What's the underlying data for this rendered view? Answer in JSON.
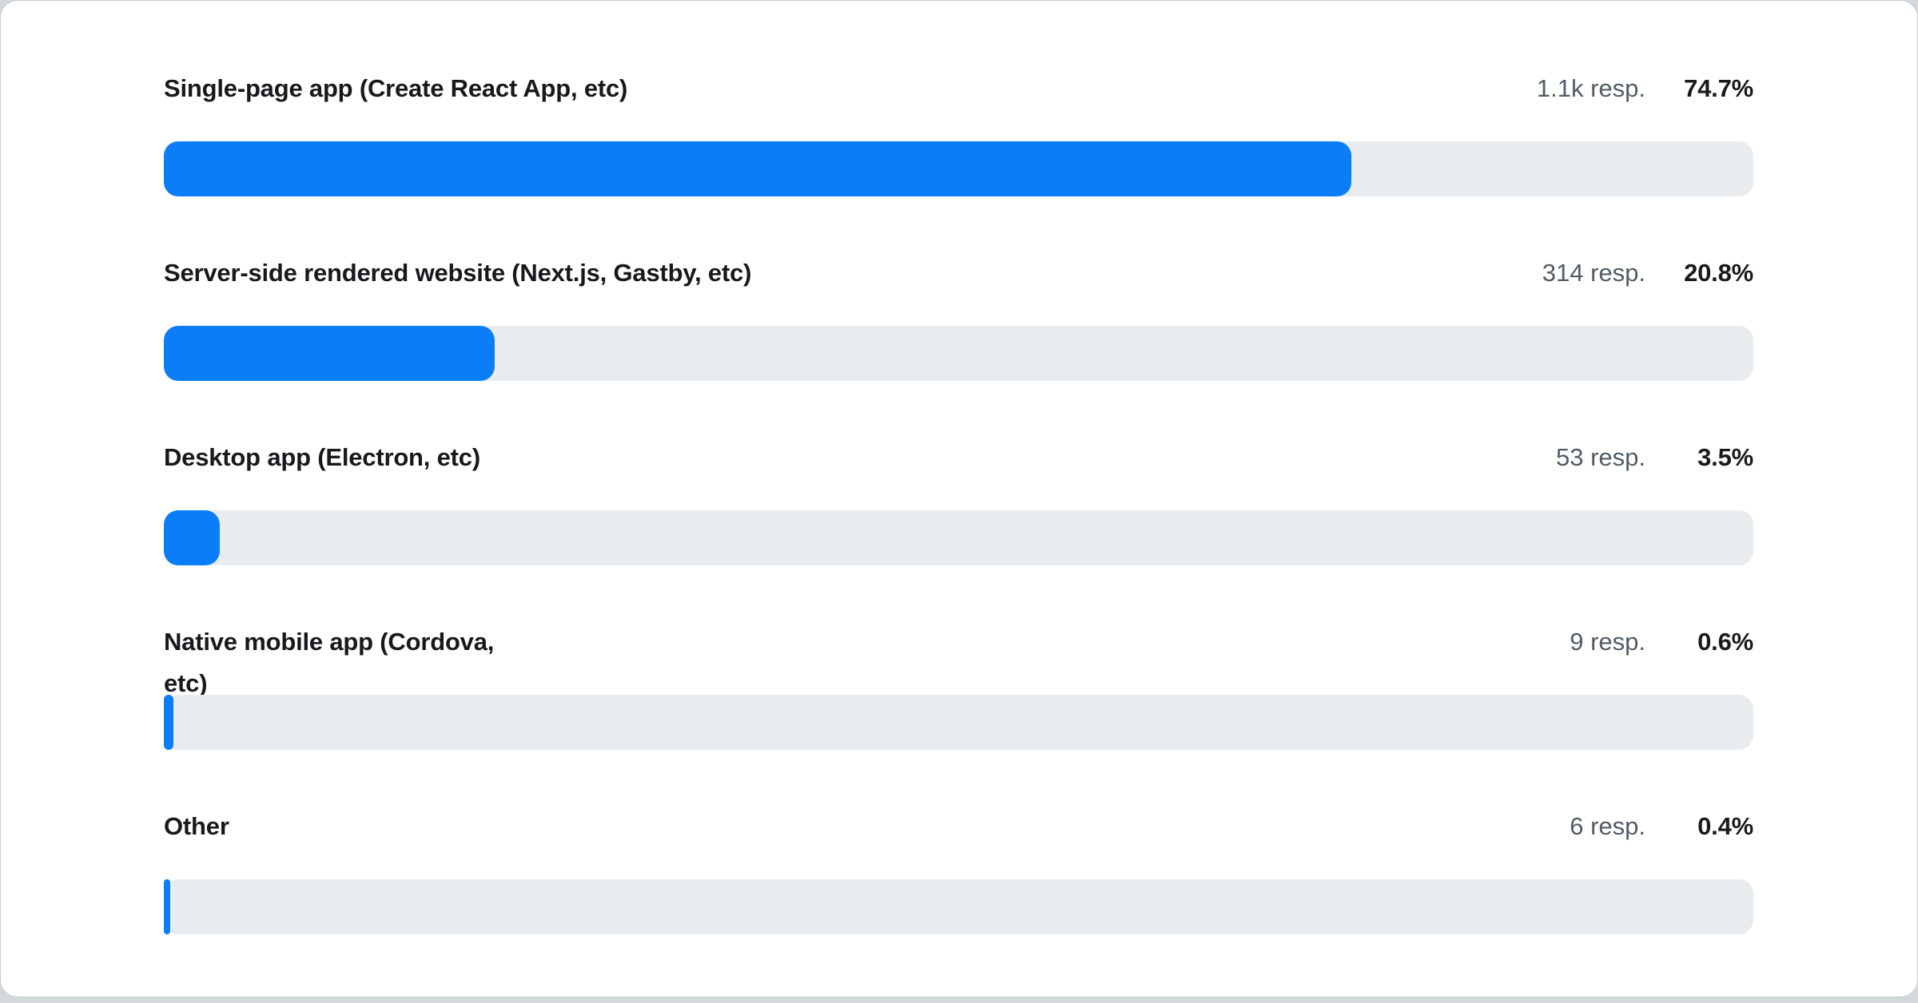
{
  "page": {
    "background_color": "#d3d8db",
    "card_background": "#ffffff",
    "card_border": "#c6cbd0"
  },
  "colors": {
    "bar_fill": "#0b7ef7",
    "bar_track": "#e9ecef",
    "label_text": "#17191c",
    "responses_text": "#515c66",
    "percent_text": "#17191c"
  },
  "rows": [
    {
      "label": "Single-page app (Create React App, etc)",
      "responses": "1.1k resp.",
      "percent": "74.7%",
      "percent_value": 74.7
    },
    {
      "label": "Server-side rendered website (Next.js, Gastby, etc)",
      "responses": "314 resp.",
      "percent": "20.8%",
      "percent_value": 20.8
    },
    {
      "label": "Desktop app (Electron, etc)",
      "responses": "53 resp.",
      "percent": "3.5%",
      "percent_value": 3.5
    },
    {
      "label": "Native mobile app (Cordova,\netc)",
      "responses": "9 resp.",
      "percent": "0.6%",
      "percent_value": 0.6
    },
    {
      "label": "Other",
      "responses": "6 resp.",
      "percent": "0.4%",
      "percent_value": 0.4
    }
  ],
  "chart_data": {
    "type": "bar",
    "orientation": "horizontal",
    "categories": [
      "Single-page app (Create React App, etc)",
      "Server-side rendered website (Next.js, Gastby, etc)",
      "Desktop app (Electron, etc)",
      "Native mobile app (Cordova, etc)",
      "Other"
    ],
    "values": [
      74.7,
      20.8,
      3.5,
      0.6,
      0.4
    ],
    "responses_display": [
      "1.1k",
      "314",
      "53",
      "9",
      "6"
    ],
    "responses_suffix": "resp.",
    "unit": "%",
    "xlim": [
      0,
      100
    ],
    "grid": false,
    "legend": "none",
    "bar_color": "#0b7ef7",
    "track_color": "#e9ecef"
  }
}
